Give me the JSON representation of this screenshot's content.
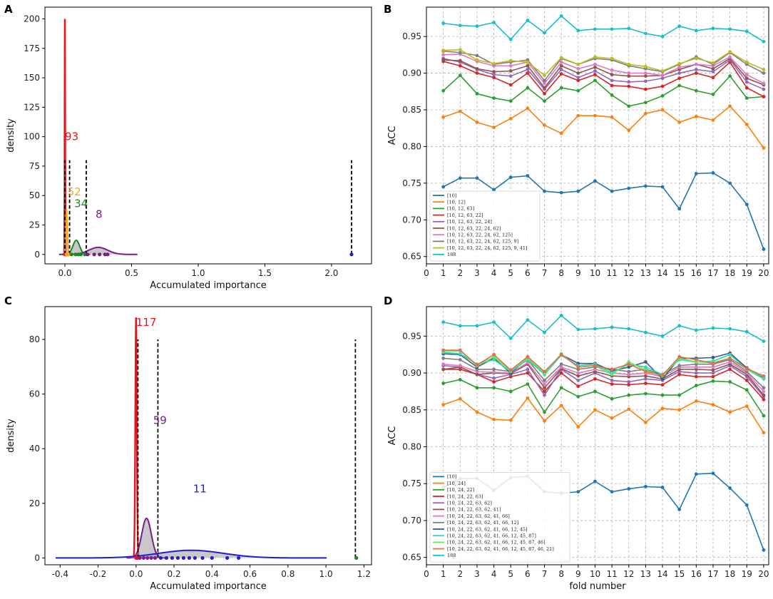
{
  "chart_data": [
    {
      "panel": "A",
      "type": "density",
      "xlabel": "Accumulated importance",
      "ylabel": "density",
      "xlim": [
        -0.15,
        2.3
      ],
      "ylim": [
        -8,
        210
      ],
      "xticks": [
        "0.0",
        "0.5",
        "1.0",
        "1.5",
        "2.0"
      ],
      "xtick_values": [
        0,
        0.5,
        1.0,
        1.5,
        2.0
      ],
      "yticks": [
        "0",
        "25",
        "50",
        "75",
        "100",
        "125",
        "150",
        "175",
        "200"
      ],
      "ytick_values": [
        0,
        25,
        50,
        75,
        100,
        125,
        150,
        175,
        200
      ],
      "annotations": [
        {
          "text": "93",
          "x": 0.0,
          "y": 97,
          "color": "#e8141c"
        },
        {
          "text": "52",
          "x": 0.02,
          "y": 50,
          "color": "#f5a623"
        },
        {
          "text": "34",
          "x": 0.07,
          "y": 40,
          "color": "#1a8a1a"
        },
        {
          "text": "8",
          "x": 0.23,
          "y": 31,
          "color": "#7b1c8a"
        }
      ],
      "thresholds": [
        0.0,
        0.035,
        0.16,
        2.15
      ],
      "threshold_height": 80,
      "curves": [
        {
          "name": "93",
          "color": "#e8141c",
          "mu": 0.0,
          "sigma": 0.002,
          "peak": 200,
          "fill": false
        },
        {
          "name": "52",
          "color": "#f5a623",
          "mu": 0.012,
          "sigma": 0.006,
          "peak": 38,
          "fill": true
        },
        {
          "name": "34",
          "color": "#1a8a1a",
          "mu": 0.085,
          "sigma": 0.025,
          "peak": 12,
          "fill": true
        },
        {
          "name": "8",
          "color": "#7b1c8a",
          "mu": 0.25,
          "sigma": 0.07,
          "peak": 6,
          "fill": true
        }
      ],
      "points": [
        {
          "color": "#e8141c",
          "xs": [
            0.0,
            0.003,
            0.006,
            0.01
          ]
        },
        {
          "color": "#f5a623",
          "xs": [
            0.012,
            0.018,
            0.024,
            0.03
          ]
        },
        {
          "color": "#1a8a1a",
          "xs": [
            0.05,
            0.08,
            0.1,
            0.12,
            0.15
          ]
        },
        {
          "color": "#7b1c8a",
          "xs": [
            0.17,
            0.22,
            0.26,
            0.3,
            0.32
          ]
        },
        {
          "color": "#1f1fd0",
          "xs": [
            2.15
          ]
        }
      ]
    },
    {
      "panel": "B",
      "type": "line",
      "xlabel": "",
      "ylabel": "ACC",
      "xlim": [
        0,
        20.3
      ],
      "ylim": [
        0.64,
        0.99
      ],
      "x": [
        1,
        2,
        3,
        4,
        5,
        6,
        7,
        8,
        9,
        10,
        11,
        12,
        13,
        14,
        15,
        16,
        17,
        18,
        19,
        20
      ],
      "xticks": [
        "0",
        "1",
        "2",
        "3",
        "4",
        "5",
        "6",
        "7",
        "8",
        "9",
        "10",
        "11",
        "12",
        "13",
        "14",
        "15",
        "16",
        "17",
        "18",
        "19",
        "20"
      ],
      "yticks": [
        "0.65",
        "0.70",
        "0.75",
        "0.80",
        "0.85",
        "0.90",
        "0.95"
      ],
      "ytick_values": [
        0.65,
        0.7,
        0.75,
        0.8,
        0.85,
        0.9,
        0.95
      ],
      "legend_position": "lower-left",
      "series": [
        {
          "name": "[10]",
          "color": "#1f77b4",
          "values": [
            0.745,
            0.757,
            0.757,
            0.741,
            0.758,
            0.76,
            0.739,
            0.737,
            0.739,
            0.753,
            0.739,
            0.743,
            0.746,
            0.745,
            0.715,
            0.763,
            0.764,
            0.75,
            0.721,
            0.66
          ]
        },
        {
          "name": "[10, 12]",
          "color": "#ff7f0e",
          "values": [
            0.84,
            0.848,
            0.833,
            0.826,
            0.838,
            0.852,
            0.829,
            0.818,
            0.842,
            0.842,
            0.84,
            0.822,
            0.845,
            0.85,
            0.833,
            0.841,
            0.836,
            0.855,
            0.83,
            0.798
          ]
        },
        {
          "name": "[10, 12, 63]",
          "color": "#2ca02c",
          "values": [
            0.876,
            0.897,
            0.872,
            0.866,
            0.862,
            0.88,
            0.862,
            0.88,
            0.876,
            0.89,
            0.87,
            0.855,
            0.86,
            0.869,
            0.883,
            0.876,
            0.871,
            0.896,
            0.866,
            0.868
          ]
        },
        {
          "name": "[10, 12, 63, 22]",
          "color": "#d62728",
          "values": [
            0.916,
            0.91,
            0.9,
            0.894,
            0.884,
            0.9,
            0.872,
            0.899,
            0.89,
            0.898,
            0.883,
            0.882,
            0.878,
            0.882,
            0.893,
            0.9,
            0.894,
            0.915,
            0.88,
            0.868
          ]
        },
        {
          "name": "[10, 12, 63, 22, 24]",
          "color": "#9467bd",
          "values": [
            0.92,
            0.915,
            0.905,
            0.898,
            0.896,
            0.905,
            0.878,
            0.905,
            0.894,
            0.903,
            0.89,
            0.888,
            0.889,
            0.893,
            0.9,
            0.905,
            0.902,
            0.918,
            0.888,
            0.878
          ]
        },
        {
          "name": "[10, 12, 63, 22, 24, 62]",
          "color": "#8c564b",
          "values": [
            0.918,
            0.917,
            0.906,
            0.902,
            0.903,
            0.91,
            0.88,
            0.91,
            0.9,
            0.908,
            0.898,
            0.896,
            0.896,
            0.897,
            0.905,
            0.912,
            0.906,
            0.92,
            0.893,
            0.884
          ]
        },
        {
          "name": "[10, 12, 63, 22, 24, 62, 125]",
          "color": "#e377c2",
          "values": [
            0.925,
            0.926,
            0.916,
            0.91,
            0.91,
            0.915,
            0.886,
            0.915,
            0.906,
            0.912,
            0.904,
            0.9,
            0.9,
            0.897,
            0.908,
            0.912,
            0.91,
            0.922,
            0.898,
            0.886
          ]
        },
        {
          "name": "[10, 12, 63, 22, 24, 62, 125, 9]",
          "color": "#7f7f7f",
          "values": [
            0.93,
            0.928,
            0.924,
            0.912,
            0.915,
            0.918,
            0.89,
            0.92,
            0.912,
            0.92,
            0.918,
            0.91,
            0.906,
            0.902,
            0.912,
            0.922,
            0.912,
            0.928,
            0.912,
            0.9
          ]
        },
        {
          "name": "[10, 12, 63, 22, 24, 62, 125, 9, 41]",
          "color": "#bcbd22",
          "values": [
            0.931,
            0.932,
            0.918,
            0.913,
            0.917,
            0.915,
            0.897,
            0.921,
            0.912,
            0.922,
            0.92,
            0.912,
            0.909,
            0.903,
            0.913,
            0.92,
            0.914,
            0.929,
            0.915,
            0.905
          ]
        },
        {
          "name": "188",
          "color": "#17becf",
          "values": [
            0.968,
            0.965,
            0.964,
            0.969,
            0.946,
            0.972,
            0.955,
            0.978,
            0.958,
            0.96,
            0.96,
            0.961,
            0.954,
            0.95,
            0.964,
            0.958,
            0.961,
            0.96,
            0.957,
            0.943
          ]
        }
      ]
    },
    {
      "panel": "C",
      "type": "density",
      "xlabel": "Accumulated importance",
      "ylabel": "density",
      "xlim": [
        -0.48,
        1.24
      ],
      "ylim": [
        -2.5,
        92
      ],
      "xticks": [
        "-0.4",
        "-0.2",
        "0.0",
        "0.2",
        "0.4",
        "0.6",
        "0.8",
        "1.0",
        "1.2"
      ],
      "xtick_values": [
        -0.4,
        -0.2,
        0.0,
        0.2,
        0.4,
        0.6,
        0.8,
        1.0,
        1.2
      ],
      "yticks": [
        "0",
        "20",
        "40",
        "60",
        "80"
      ],
      "ytick_values": [
        0,
        20,
        40,
        60,
        80
      ],
      "annotations": [
        {
          "text": "117",
          "x": 0.0,
          "y": 85,
          "color": "#e8141c"
        },
        {
          "text": "59",
          "x": 0.09,
          "y": 49,
          "color": "#7b1c8a"
        },
        {
          "text": "11",
          "x": 0.3,
          "y": 24,
          "color": "#1f1fd0"
        }
      ],
      "thresholds": [
        0.01,
        0.115,
        1.155
      ],
      "threshold_height": 80,
      "curves": [
        {
          "name": "117",
          "color": "#e8141c",
          "mu": 0.0,
          "sigma": 0.004,
          "peak": 88,
          "fill": false
        },
        {
          "name": "59",
          "color": "#7b1c8a",
          "mu": 0.055,
          "sigma": 0.025,
          "peak": 14.5,
          "fill": true
        },
        {
          "name": "11",
          "color": "#1f1fd0",
          "mu": 0.29,
          "sigma": 0.17,
          "peak": 2.8,
          "fill": true
        }
      ],
      "points": [
        {
          "color": "#e8141c",
          "xs": [
            0.0,
            0.002,
            0.005,
            0.008
          ]
        },
        {
          "color": "#7b1c8a",
          "xs": [
            0.02,
            0.04,
            0.06,
            0.08,
            0.1
          ]
        },
        {
          "color": "#1f1fd0",
          "xs": [
            0.13,
            0.16,
            0.19,
            0.22,
            0.25,
            0.28,
            0.31,
            0.35,
            0.4,
            0.48,
            0.54
          ]
        },
        {
          "color": "#1a8a1a",
          "xs": [
            1.16
          ]
        }
      ]
    },
    {
      "panel": "D",
      "type": "line",
      "xlabel": "fold number",
      "ylabel": "ACC",
      "xlim": [
        0,
        20.3
      ],
      "ylim": [
        0.64,
        0.99
      ],
      "x": [
        1,
        2,
        3,
        4,
        5,
        6,
        7,
        8,
        9,
        10,
        11,
        12,
        13,
        14,
        15,
        16,
        17,
        18,
        19,
        20
      ],
      "xticks": [
        "0",
        "1",
        "2",
        "3",
        "4",
        "5",
        "6",
        "7",
        "8",
        "9",
        "10",
        "11",
        "12",
        "13",
        "14",
        "15",
        "16",
        "17",
        "18",
        "19",
        "20"
      ],
      "yticks": [
        "0.65",
        "0.70",
        "0.75",
        "0.80",
        "0.85",
        "0.90",
        "0.95"
      ],
      "ytick_values": [
        0.65,
        0.7,
        0.75,
        0.8,
        0.85,
        0.9,
        0.95
      ],
      "legend_position": "lower-left",
      "series": [
        {
          "name": "[10]",
          "color": "#1f77b4",
          "values": [
            0.745,
            0.757,
            0.757,
            0.741,
            0.758,
            0.76,
            0.739,
            0.737,
            0.739,
            0.753,
            0.739,
            0.743,
            0.746,
            0.745,
            0.715,
            0.763,
            0.764,
            0.744,
            0.721,
            0.66
          ]
        },
        {
          "name": "[10, 24]",
          "color": "#ff7f0e",
          "values": [
            0.857,
            0.865,
            0.847,
            0.837,
            0.836,
            0.866,
            0.835,
            0.856,
            0.827,
            0.85,
            0.839,
            0.851,
            0.833,
            0.852,
            0.85,
            0.862,
            0.857,
            0.847,
            0.855,
            0.819
          ]
        },
        {
          "name": "[10, 24, 22]",
          "color": "#2ca02c",
          "values": [
            0.886,
            0.891,
            0.88,
            0.88,
            0.875,
            0.885,
            0.847,
            0.88,
            0.868,
            0.875,
            0.865,
            0.87,
            0.872,
            0.87,
            0.87,
            0.883,
            0.889,
            0.888,
            0.877,
            0.842
          ]
        },
        {
          "name": "[10, 24, 22, 63]",
          "color": "#d62728",
          "values": [
            0.905,
            0.905,
            0.898,
            0.888,
            0.895,
            0.9,
            0.875,
            0.9,
            0.882,
            0.892,
            0.885,
            0.884,
            0.886,
            0.884,
            0.898,
            0.895,
            0.895,
            0.905,
            0.89,
            0.864
          ]
        },
        {
          "name": "[10, 24, 22, 63, 62]",
          "color": "#9467bd",
          "values": [
            0.91,
            0.908,
            0.898,
            0.893,
            0.898,
            0.905,
            0.87,
            0.905,
            0.89,
            0.9,
            0.89,
            0.888,
            0.892,
            0.89,
            0.902,
            0.9,
            0.9,
            0.91,
            0.895,
            0.868
          ]
        },
        {
          "name": "[10, 24, 22, 63, 62, 41]",
          "color": "#8c564b",
          "values": [
            0.905,
            0.908,
            0.898,
            0.9,
            0.899,
            0.912,
            0.88,
            0.906,
            0.896,
            0.902,
            0.896,
            0.895,
            0.896,
            0.892,
            0.905,
            0.905,
            0.904,
            0.912,
            0.898,
            0.87
          ]
        },
        {
          "name": "[10, 24, 22, 63, 62, 41, 66]",
          "color": "#e377c2",
          "values": [
            0.912,
            0.91,
            0.902,
            0.901,
            0.9,
            0.914,
            0.885,
            0.908,
            0.9,
            0.905,
            0.9,
            0.898,
            0.9,
            0.895,
            0.908,
            0.908,
            0.908,
            0.915,
            0.9,
            0.875
          ]
        },
        {
          "name": "[10, 24, 22, 63, 62, 41, 66, 12]",
          "color": "#7f7f7f",
          "values": [
            0.92,
            0.918,
            0.905,
            0.905,
            0.902,
            0.918,
            0.89,
            0.912,
            0.905,
            0.908,
            0.905,
            0.902,
            0.905,
            0.898,
            0.91,
            0.912,
            0.912,
            0.918,
            0.902,
            0.88
          ]
        },
        {
          "name": "[10, 24, 22, 63, 62, 41, 66, 12, 45]",
          "color": "#3b5b92",
          "values": [
            0.926,
            0.925,
            0.908,
            0.92,
            0.9,
            0.92,
            0.9,
            0.925,
            0.913,
            0.913,
            0.903,
            0.908,
            0.915,
            0.892,
            0.92,
            0.92,
            0.921,
            0.927,
            0.907,
            0.893
          ]
        },
        {
          "name": "[10, 24, 22, 63, 62, 41, 66, 12, 45, 87]",
          "color": "#2bd9b9",
          "values": [
            0.928,
            0.926,
            0.912,
            0.918,
            0.902,
            0.918,
            0.898,
            0.924,
            0.91,
            0.912,
            0.9,
            0.912,
            0.908,
            0.898,
            0.918,
            0.915,
            0.916,
            0.925,
            0.905,
            0.892
          ]
        },
        {
          "name": "[10, 24, 22, 63, 62, 41, 66, 12, 45, 87, 46]",
          "color": "#6ee35c",
          "values": [
            0.93,
            0.93,
            0.91,
            0.922,
            0.903,
            0.92,
            0.9,
            0.926,
            0.908,
            0.91,
            0.898,
            0.915,
            0.904,
            0.896,
            0.92,
            0.915,
            0.914,
            0.92,
            0.905,
            0.895
          ]
        },
        {
          "name": "[10, 24, 22, 63, 62, 41, 66, 12, 45, 87, 46, 21]",
          "color": "#e0704a",
          "values": [
            0.931,
            0.931,
            0.911,
            0.925,
            0.904,
            0.922,
            0.902,
            0.925,
            0.908,
            0.91,
            0.905,
            0.912,
            0.902,
            0.897,
            0.922,
            0.918,
            0.913,
            0.92,
            0.906,
            0.896
          ]
        },
        {
          "name": "188",
          "color": "#17becf",
          "values": [
            0.969,
            0.964,
            0.964,
            0.969,
            0.947,
            0.972,
            0.955,
            0.978,
            0.959,
            0.96,
            0.962,
            0.96,
            0.955,
            0.95,
            0.964,
            0.958,
            0.961,
            0.96,
            0.956,
            0.943
          ]
        }
      ]
    }
  ]
}
